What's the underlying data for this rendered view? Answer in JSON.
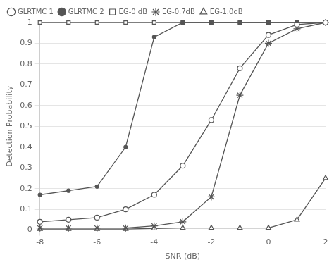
{
  "chart_data": {
    "type": "line",
    "xlabel": "SNR (dB)",
    "ylabel": "Detection Probability",
    "xlim": [
      -8,
      2
    ],
    "ylim": [
      0,
      1
    ],
    "xticks": [
      -8,
      -6,
      -4,
      -2,
      0,
      2
    ],
    "yticks": [
      0,
      0.1,
      0.2,
      0.3,
      0.4,
      0.5,
      0.6,
      0.7,
      0.8,
      0.9,
      1
    ],
    "x": [
      -8,
      -7,
      -6,
      -5,
      -4,
      -3,
      -2,
      -1,
      0,
      1,
      2
    ],
    "series": [
      {
        "name": "GLRTMC 1",
        "color": "#555555",
        "marker": "circle",
        "line_style": "solid",
        "values": [
          0.04,
          0.05,
          0.06,
          0.1,
          0.17,
          0.31,
          0.53,
          0.78,
          0.94,
          0.99,
          1.0
        ]
      },
      {
        "name": "GLRTMC 2",
        "color": "#555555",
        "marker": "point",
        "line_style": "solid",
        "values": [
          0.17,
          0.19,
          0.21,
          0.4,
          0.93,
          1.0,
          1.0,
          1.0,
          1.0,
          1.0,
          1.0
        ]
      },
      {
        "name": "EG-0 dB",
        "color": "#555555",
        "marker": "square",
        "line_style": "solid",
        "values": [
          1.0,
          1.0,
          1.0,
          1.0,
          1.0,
          1.0,
          1.0,
          1.0,
          1.0,
          1.0,
          1.0
        ]
      },
      {
        "name": "EG-0.7dB",
        "color": "#555555",
        "marker": "star",
        "line_style": "solid",
        "values": [
          0.01,
          0.01,
          0.01,
          0.01,
          0.02,
          0.04,
          0.16,
          0.65,
          0.9,
          0.97,
          1.0
        ]
      },
      {
        "name": "EG-1.0dB",
        "color": "#555555",
        "marker": "triangle",
        "line_style": "solid",
        "values": [
          0.005,
          0.005,
          0.005,
          0.005,
          0.008,
          0.01,
          0.01,
          0.01,
          0.01,
          0.05,
          0.25
        ]
      }
    ],
    "legend": "upper left",
    "grid": true
  }
}
